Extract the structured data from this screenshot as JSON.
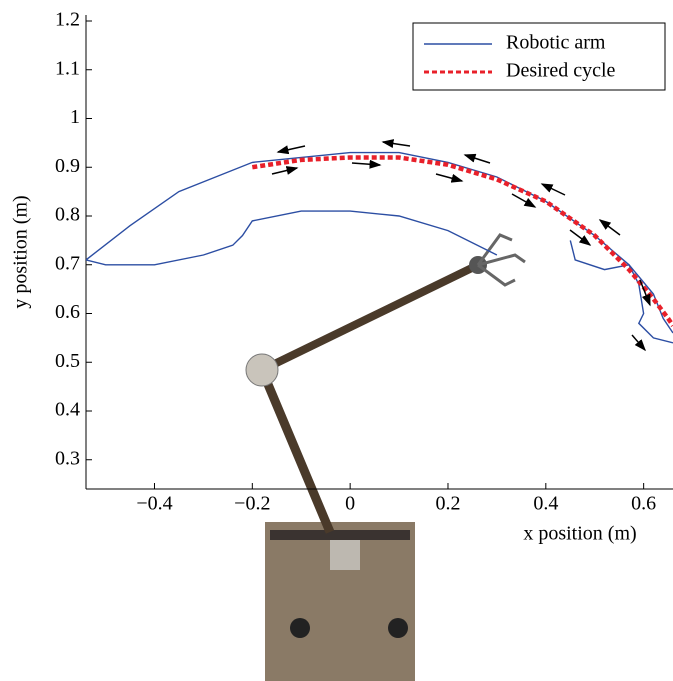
{
  "chart_data": {
    "type": "line",
    "xlabel": "x position (m)",
    "ylabel": "y position (m)",
    "xlim": [
      -0.54,
      0.66
    ],
    "ylim": [
      0.24,
      1.2
    ],
    "xticks": [
      {
        "value": -0.4,
        "label": "−0.4"
      },
      {
        "value": -0.2,
        "label": "−0.2"
      },
      0,
      0.2,
      0.4,
      0.6
    ],
    "yticks": [
      0.3,
      0.4,
      0.5,
      0.6,
      0.7,
      0.8,
      0.9,
      1,
      1.1,
      1.2
    ],
    "legend": "upper right",
    "series": [
      {
        "name": "Robotic arm",
        "color": "#2c4ea3",
        "style": "solid",
        "x": [
          0.3,
          0.2,
          0.1,
          0.0,
          -0.1,
          -0.2,
          -0.22,
          -0.24,
          -0.3,
          -0.4,
          -0.5,
          -0.54,
          -0.45,
          -0.35,
          -0.2,
          0,
          0.1,
          0.2,
          0.3,
          0.4,
          0.5,
          0.57,
          0.62,
          0.64,
          0.66,
          null,
          0.45,
          0.46,
          0.52,
          0.57,
          0.59,
          0.6,
          0.59,
          0.62,
          0.66
        ],
        "y": [
          0.72,
          0.77,
          0.8,
          0.81,
          0.81,
          0.79,
          0.76,
          0.74,
          0.72,
          0.7,
          0.7,
          0.71,
          0.78,
          0.85,
          0.91,
          0.93,
          0.93,
          0.91,
          0.88,
          0.83,
          0.76,
          0.7,
          0.64,
          0.59,
          0.56,
          null,
          0.75,
          0.71,
          0.69,
          0.7,
          0.66,
          0.6,
          0.58,
          0.55,
          0.54
        ]
      },
      {
        "name": "Desired cycle",
        "color": "#e8202a",
        "style": "dashed",
        "x": [
          -0.2,
          -0.1,
          0,
          0.1,
          0.2,
          0.3,
          0.4,
          0.5,
          0.57,
          0.62,
          0.65,
          0.66
        ],
        "y": [
          0.9,
          0.915,
          0.92,
          0.92,
          0.905,
          0.875,
          0.83,
          0.76,
          0.69,
          0.63,
          0.59,
          0.575
        ]
      }
    ]
  }
}
